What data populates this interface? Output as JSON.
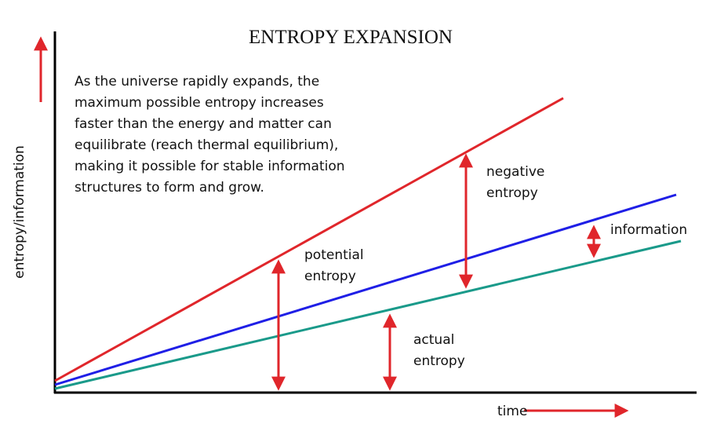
{
  "title": "ENTROPY EXPANSION",
  "description": {
    "lines": [
      "As the universe rapidly expands, the",
      "maximum possible entropy increases",
      "faster than the energy and matter can",
      "equilibrate (reach thermal equilibrium),",
      "making it possible for stable information",
      "structures to form and grow."
    ]
  },
  "labels": {
    "potential_entropy": [
      "potential",
      "entropy"
    ],
    "negative_entropy": [
      "negative",
      "entropy"
    ],
    "information": [
      "information"
    ],
    "actual_entropy": [
      "actual",
      "entropy"
    ]
  },
  "axes": {
    "y_label": "entropy/information",
    "x_label": "time"
  }
}
